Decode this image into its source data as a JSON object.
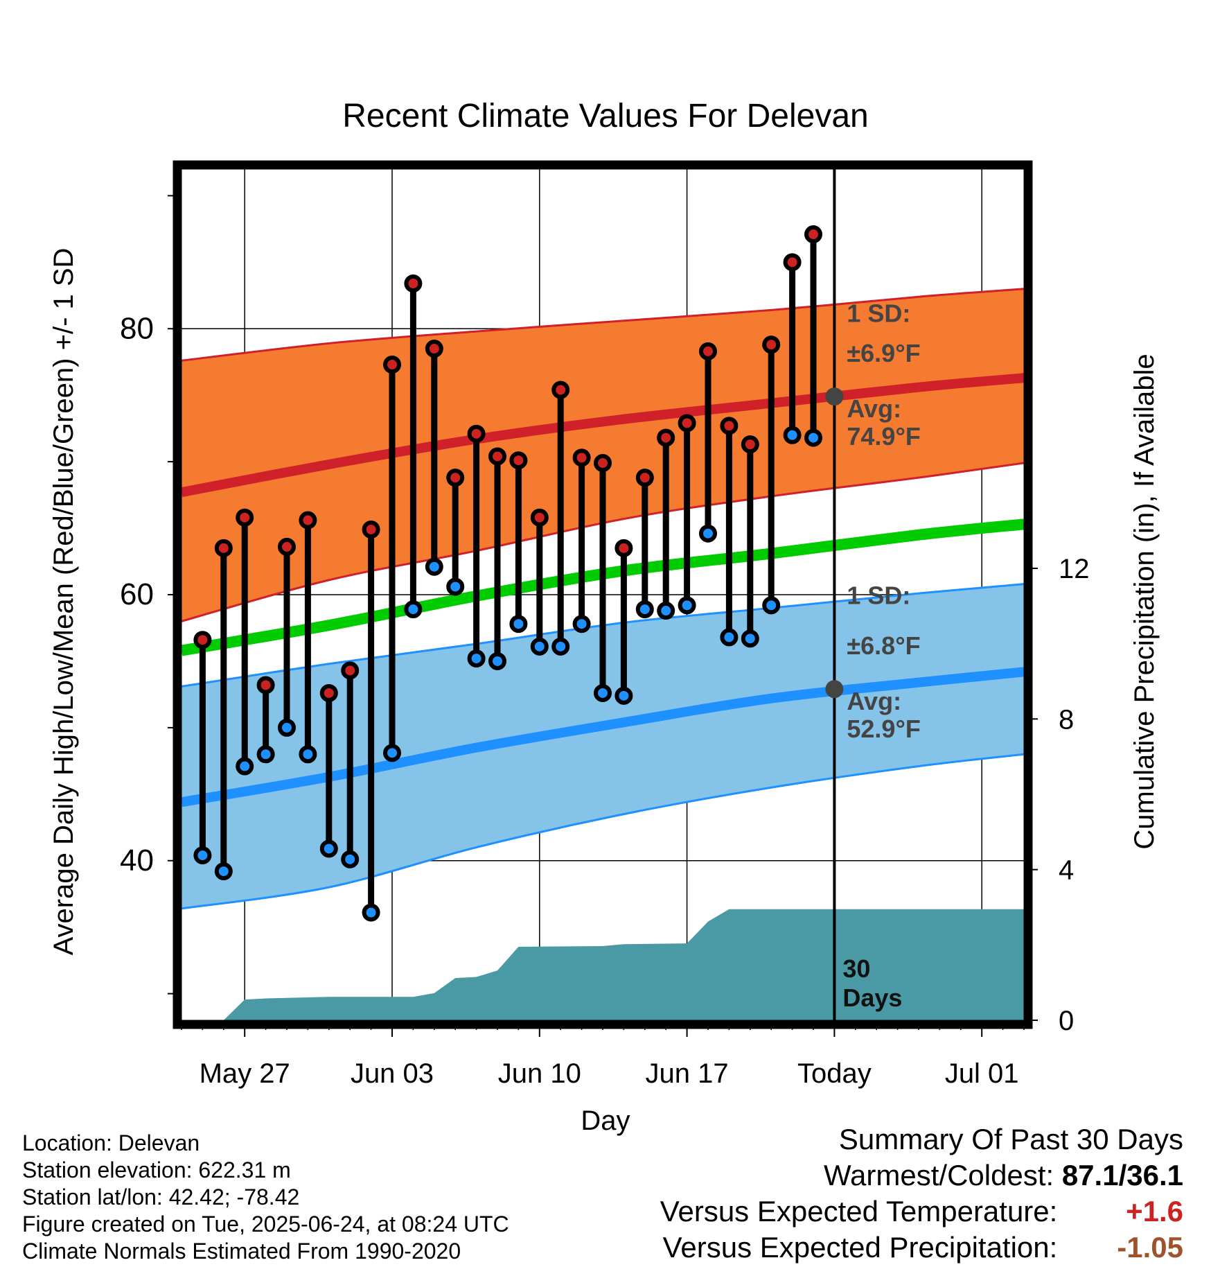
{
  "chart_data": {
    "type": "line",
    "title": "Recent Climate Values For Delevan",
    "xlabel": "Day",
    "ylabel": "Average Daily High/Low/Mean (Red/Blue/Green) +/- 1 SD",
    "y2label": "Cumulative Precipitation (in), If Available",
    "ylim": [
      28,
      92
    ],
    "y2lim": [
      0,
      22.6
    ],
    "yticks": [
      "40",
      "60",
      "80"
    ],
    "y2ticks": [
      "0",
      "4",
      "8",
      "12"
    ],
    "xticks": [
      "May 27",
      "Jun 03",
      "Jun 10",
      "Jun 17",
      "Today",
      "Jul 01"
    ],
    "x_start": "May 24",
    "x_end": "Jul 03",
    "today": "Jun 24",
    "grid": true,
    "normals": {
      "x": [
        "May 24",
        "May 31",
        "Jun 07",
        "Jun 14",
        "Jun 21",
        "Jun 28",
        "Jul 03"
      ],
      "high_mean": [
        67.7,
        69.8,
        71.7,
        73.2,
        74.4,
        75.6,
        76.3
      ],
      "high_upper": [
        77.6,
        78.9,
        79.8,
        80.6,
        81.4,
        82.4,
        83.0
      ],
      "high_lower": [
        58.0,
        61.1,
        63.3,
        65.7,
        67.4,
        68.8,
        69.9
      ],
      "mean": [
        55.8,
        57.7,
        59.9,
        61.8,
        63.1,
        64.5,
        65.3
      ],
      "low_mean": [
        44.4,
        46.3,
        48.5,
        50.4,
        52.2,
        53.4,
        54.2
      ],
      "low_upper": [
        53.1,
        54.8,
        56.3,
        57.9,
        59.0,
        60.1,
        60.8
      ],
      "low_lower": [
        36.4,
        38.0,
        41.0,
        43.5,
        45.5,
        47.1,
        48.0
      ]
    },
    "today_marker": {
      "high_sd": "1 SD:",
      "high_sd_value": "±6.9°F",
      "high_avg": "Avg:",
      "high_avg_value": "74.9°F",
      "high_avg_num": 74.9,
      "low_sd": "1 SD:",
      "low_sd_value": "±6.8°F",
      "low_avg": "Avg:",
      "low_avg_value": "52.9°F",
      "low_avg_num": 52.9
    },
    "days_label": "30 Days",
    "series": [
      {
        "name": "High",
        "color": "#cc2222",
        "values": [
          56.6,
          63.5,
          65.8,
          53.2,
          63.6,
          65.6,
          52.6,
          54.3,
          64.9,
          77.3,
          83.4,
          78.5,
          68.8,
          72.1,
          70.4,
          70.1,
          65.8,
          75.4,
          70.3,
          69.9,
          63.5,
          68.8,
          71.8,
          72.9,
          78.3,
          72.7,
          71.3,
          78.8,
          85.0,
          87.1
        ]
      },
      {
        "name": "Low",
        "color": "#1e90ff",
        "values": [
          40.4,
          39.2,
          47.1,
          48.0,
          50.0,
          48.0,
          40.9,
          40.1,
          36.1,
          48.1,
          58.9,
          62.1,
          60.6,
          55.2,
          55.0,
          57.8,
          56.1,
          56.1,
          57.8,
          52.6,
          52.4,
          58.9,
          58.8,
          59.2,
          64.6,
          56.8,
          56.7,
          59.2,
          72.0,
          71.8
        ]
      }
    ],
    "dates": [
      "May 25",
      "May 26",
      "May 27",
      "May 28",
      "May 29",
      "May 30",
      "May 31",
      "Jun 01",
      "Jun 02",
      "Jun 03",
      "Jun 04",
      "Jun 05",
      "Jun 06",
      "Jun 07",
      "Jun 08",
      "Jun 09",
      "Jun 10",
      "Jun 11",
      "Jun 12",
      "Jun 13",
      "Jun 14",
      "Jun 15",
      "Jun 16",
      "Jun 17",
      "Jun 18",
      "Jun 19",
      "Jun 20",
      "Jun 21",
      "Jun 22",
      "Jun 23"
    ],
    "precip": {
      "name": "Cumulative Precipitation",
      "color": "#4a9aa5",
      "x": [
        "May 24",
        "May 26",
        "May 27",
        "May 28",
        "May 31",
        "Jun 04",
        "Jun 05",
        "Jun 06",
        "Jun 07",
        "Jun 08",
        "Jun 09",
        "Jun 13",
        "Jun 14",
        "Jun 17",
        "Jun 18",
        "Jun 19",
        "Jun 22",
        "Jun 24",
        "Jul 03"
      ],
      "values": [
        0,
        0,
        0.55,
        0.58,
        0.62,
        0.62,
        0.72,
        1.12,
        1.15,
        1.32,
        1.95,
        1.97,
        2.02,
        2.04,
        2.62,
        2.95,
        2.95,
        2.95,
        2.95
      ]
    }
  },
  "footer": {
    "location": "Location: Delevan",
    "elevation": "Station elevation: 622.31 m",
    "latlon": "Station lat/lon: 42.42; -78.42",
    "created": "Figure created on Tue, 2025-06-24, at 08:24 UTC",
    "normals": "Climate Normals Estimated From 1990-2020"
  },
  "summary": {
    "title": "Summary Of Past 30 Days",
    "warmest_label": "Warmest/Coldest:",
    "warmest_value": "87.1/36.1",
    "temp_label": "Versus Expected Temperature:",
    "temp_value": "+1.6",
    "temp_color": "#cc2222",
    "precip_label": "Versus Expected Precipitation:",
    "precip_value": "-1.05",
    "precip_color": "#a0522d"
  }
}
